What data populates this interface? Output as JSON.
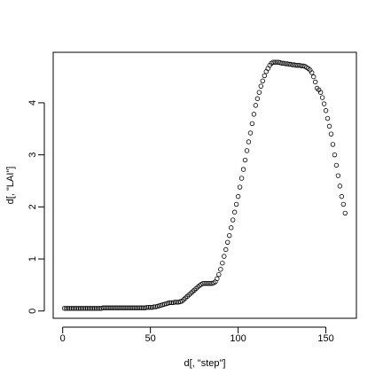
{
  "chart_data": {
    "type": "scatter",
    "x_label": "d[, \"step\"]",
    "y_label": "d[, \"LAI\"]",
    "x": [
      1,
      2,
      3,
      4,
      5,
      6,
      7,
      8,
      9,
      10,
      11,
      12,
      13,
      14,
      15,
      16,
      17,
      18,
      19,
      20,
      21,
      22,
      23,
      24,
      25,
      26,
      27,
      28,
      29,
      30,
      31,
      32,
      33,
      34,
      35,
      36,
      37,
      38,
      39,
      40,
      41,
      42,
      43,
      44,
      45,
      46,
      47,
      48,
      49,
      50,
      51,
      52,
      53,
      54,
      55,
      56,
      57,
      58,
      59,
      60,
      61,
      62,
      63,
      64,
      65,
      66,
      67,
      68,
      69,
      70,
      71,
      72,
      73,
      74,
      75,
      76,
      77,
      78,
      79,
      80,
      81,
      82,
      83,
      84,
      85,
      86,
      87,
      88,
      89,
      90,
      91,
      92,
      93,
      94,
      95,
      96,
      97,
      98,
      99,
      100,
      101,
      102,
      103,
      104,
      105,
      106,
      107,
      108,
      109,
      110,
      111,
      112,
      113,
      114,
      115,
      116,
      117,
      118,
      119,
      120,
      121,
      122,
      123,
      124,
      125,
      126,
      127,
      128,
      129,
      130,
      131,
      132,
      133,
      134,
      135,
      136,
      137,
      138,
      139,
      140,
      141,
      142,
      143,
      144,
      145,
      146,
      147,
      148,
      149,
      150,
      151,
      152,
      153,
      154,
      155,
      156,
      157,
      158,
      159,
      160,
      161
    ],
    "values": [
      0.05,
      0.05,
      0.05,
      0.05,
      0.05,
      0.05,
      0.05,
      0.05,
      0.05,
      0.05,
      0.05,
      0.05,
      0.05,
      0.05,
      0.05,
      0.05,
      0.05,
      0.05,
      0.05,
      0.05,
      0.05,
      0.05,
      0.06,
      0.06,
      0.06,
      0.06,
      0.06,
      0.06,
      0.06,
      0.06,
      0.06,
      0.06,
      0.06,
      0.06,
      0.06,
      0.06,
      0.06,
      0.06,
      0.06,
      0.06,
      0.06,
      0.06,
      0.06,
      0.06,
      0.06,
      0.06,
      0.06,
      0.07,
      0.07,
      0.07,
      0.07,
      0.08,
      0.08,
      0.09,
      0.1,
      0.11,
      0.12,
      0.13,
      0.14,
      0.15,
      0.16,
      0.16,
      0.16,
      0.17,
      0.17,
      0.17,
      0.18,
      0.19,
      0.22,
      0.25,
      0.28,
      0.31,
      0.34,
      0.37,
      0.4,
      0.43,
      0.46,
      0.49,
      0.51,
      0.53,
      0.53,
      0.53,
      0.53,
      0.53,
      0.53,
      0.54,
      0.56,
      0.62,
      0.7,
      0.8,
      0.92,
      1.05,
      1.18,
      1.32,
      1.45,
      1.6,
      1.75,
      1.9,
      2.05,
      2.2,
      2.38,
      2.55,
      2.72,
      2.9,
      3.08,
      3.25,
      3.42,
      3.6,
      3.78,
      3.95,
      4.08,
      4.2,
      4.32,
      4.42,
      4.52,
      4.6,
      4.66,
      4.72,
      4.76,
      4.78,
      4.78,
      4.78,
      4.78,
      4.77,
      4.76,
      4.76,
      4.75,
      4.75,
      4.74,
      4.74,
      4.73,
      4.73,
      4.72,
      4.72,
      4.72,
      4.71,
      4.71,
      4.7,
      4.68,
      4.66,
      4.63,
      4.58,
      4.5,
      4.4,
      4.28,
      4.25,
      4.2,
      4.1,
      3.98,
      3.85,
      3.7,
      3.55,
      3.4,
      3.2,
      3.0,
      2.8,
      2.6,
      2.4,
      2.2,
      2.05,
      1.88
    ],
    "color": "#000000",
    "xlim": [
      -5.4,
      167.4
    ],
    "ylim": [
      -0.14,
      4.97
    ],
    "xticks": [
      0,
      50,
      100,
      150
    ],
    "yticks": [
      0,
      1,
      2,
      3,
      4
    ]
  }
}
